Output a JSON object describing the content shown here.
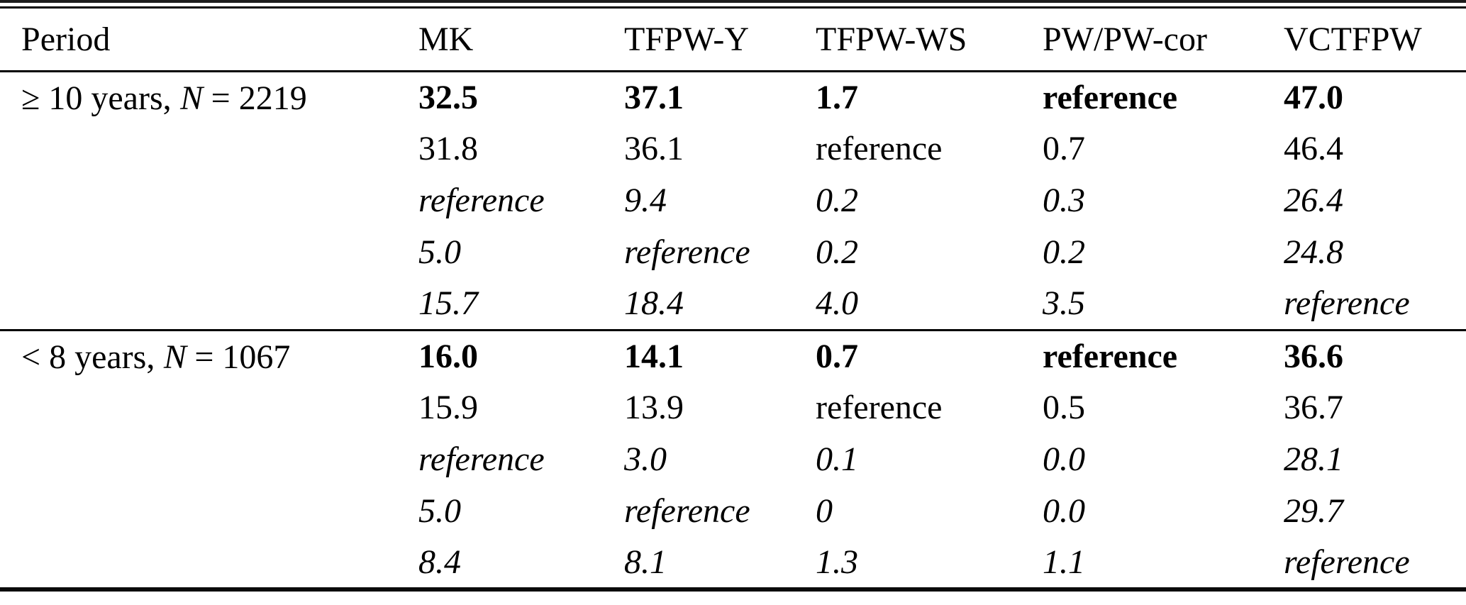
{
  "page": {
    "background_color": "#ffffff",
    "text_color": "#000000",
    "rule_color": "#000000"
  },
  "table": {
    "columns": [
      {
        "label": "Period"
      },
      {
        "label": "MK"
      },
      {
        "label": "TFPW-Y"
      },
      {
        "label": "TFPW-WS"
      },
      {
        "label": "PW/PW-cor"
      },
      {
        "label": "VCTFPW"
      }
    ],
    "groups": [
      {
        "period": {
          "pre": "≥ 10 years,",
          "var": "N",
          "post": "= 2219"
        },
        "rows": [
          {
            "style": "bold",
            "values": [
              "32.5",
              "37.1",
              "1.7",
              "reference",
              "47.0"
            ]
          },
          {
            "style": "regular",
            "values": [
              "31.8",
              "36.1",
              "reference",
              "0.7",
              "46.4"
            ]
          },
          {
            "style": "italic",
            "values": [
              "reference",
              "9.4",
              "0.2",
              "0.3",
              "26.4"
            ]
          },
          {
            "style": "italic",
            "values": [
              "5.0",
              "reference",
              "0.2",
              "0.2",
              "24.8"
            ]
          },
          {
            "style": "italic",
            "values": [
              "15.7",
              "18.4",
              "4.0",
              "3.5",
              "reference"
            ]
          }
        ]
      },
      {
        "period": {
          "pre": "< 8 years,",
          "var": "N",
          "post": "= 1067"
        },
        "rows": [
          {
            "style": "bold",
            "values": [
              "16.0",
              "14.1",
              "0.7",
              "reference",
              "36.6"
            ]
          },
          {
            "style": "regular",
            "values": [
              "15.9",
              "13.9",
              "reference",
              "0.5",
              "36.7"
            ]
          },
          {
            "style": "italic",
            "values": [
              "reference",
              "3.0",
              "0.1",
              "0.0",
              "28.1"
            ]
          },
          {
            "style": "italic",
            "values": [
              "5.0",
              "reference",
              "0",
              "0.0",
              "29.7"
            ]
          },
          {
            "style": "italic",
            "values": [
              "8.4",
              "8.1",
              "1.3",
              "1.1",
              "reference"
            ]
          }
        ]
      }
    ]
  }
}
